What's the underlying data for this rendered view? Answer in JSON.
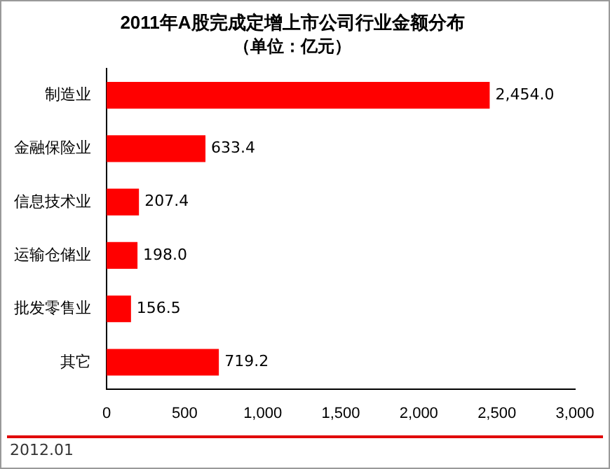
{
  "chart_data": {
    "type": "bar",
    "orientation": "horizontal",
    "title": "2011年A股完成定增上市公司行业金额分布",
    "subtitle": "（单位：亿元）",
    "categories": [
      "制造业",
      "金融保险业",
      "信息技术业",
      "运输仓储业",
      "批发零售业",
      "其它"
    ],
    "values": [
      2454.0,
      633.4,
      207.4,
      198.0,
      156.5,
      719.2
    ],
    "value_labels": [
      "2,454.0",
      "633.4",
      "207.4",
      "198.0",
      "156.5",
      "719.2"
    ],
    "color": "#ff0000",
    "xlim": [
      0,
      3000
    ],
    "xticks": [
      0,
      500,
      {
        "value": 1000,
        "label": "1,000"
      },
      {
        "value": 1500,
        "label": "1,500"
      },
      {
        "value": 2000,
        "label": "2,000"
      },
      {
        "value": 2500,
        "label": "2,500"
      },
      {
        "value": 3000,
        "label": "3,000"
      }
    ],
    "grid": false,
    "legend": false,
    "annotations": [
      "2012.01"
    ]
  }
}
